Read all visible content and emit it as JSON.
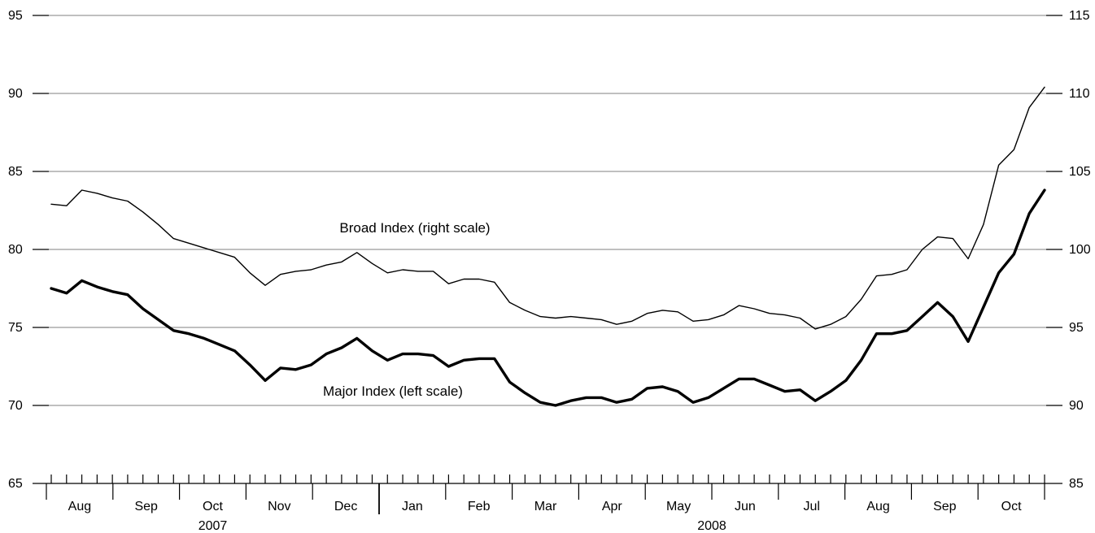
{
  "chart_data": {
    "type": "line",
    "left_axis": {
      "min": 65,
      "max": 95,
      "ticks": [
        65,
        70,
        75,
        80,
        85,
        90,
        95
      ]
    },
    "right_axis": {
      "min": 85,
      "max": 115,
      "ticks": [
        85,
        90,
        95,
        100,
        105,
        110,
        115
      ]
    },
    "months": [
      "Aug",
      "Sep",
      "Oct",
      "Nov",
      "Dec",
      "Jan",
      "Feb",
      "Mar",
      "Apr",
      "May",
      "Jun",
      "Jul",
      "Aug",
      "Sep",
      "Oct"
    ],
    "years": [
      {
        "label": "2007",
        "month_index": 2
      },
      {
        "label": "2008",
        "month_index": 9.5
      }
    ],
    "grid": "horizontal",
    "series": [
      {
        "name": "Broad Index (right scale)",
        "axis": "right",
        "line_weight": "thin",
        "values": [
          102.9,
          102.8,
          103.8,
          103.6,
          103.3,
          103.1,
          102.4,
          101.6,
          100.7,
          100.4,
          100.1,
          99.8,
          99.5,
          98.5,
          97.7,
          98.4,
          98.6,
          98.7,
          99.0,
          99.2,
          99.8,
          99.1,
          98.5,
          98.7,
          98.6,
          98.6,
          97.8,
          98.1,
          98.1,
          97.9,
          96.6,
          96.1,
          95.7,
          95.6,
          95.7,
          95.6,
          95.5,
          95.2,
          95.4,
          95.9,
          96.1,
          96.0,
          95.4,
          95.5,
          95.8,
          96.4,
          96.2,
          95.9,
          95.8,
          95.6,
          94.9,
          95.2,
          95.7,
          96.8,
          98.3,
          98.4,
          98.7,
          100.0,
          100.8,
          100.7,
          99.4,
          101.6,
          105.4,
          106.4,
          109.1,
          110.4
        ]
      },
      {
        "name": "Major Index (left scale)",
        "axis": "left",
        "line_weight": "thick",
        "values": [
          77.5,
          77.2,
          78.0,
          77.6,
          77.3,
          77.1,
          76.2,
          75.5,
          74.8,
          74.6,
          74.3,
          73.9,
          73.5,
          72.6,
          71.6,
          72.4,
          72.3,
          72.6,
          73.3,
          73.7,
          74.3,
          73.5,
          72.9,
          73.3,
          73.3,
          73.2,
          72.5,
          72.9,
          73.0,
          73.0,
          71.5,
          70.8,
          70.2,
          70.0,
          70.3,
          70.5,
          70.5,
          70.2,
          70.4,
          71.1,
          71.2,
          70.9,
          70.2,
          70.5,
          71.1,
          71.7,
          71.7,
          71.3,
          70.9,
          71.0,
          70.3,
          70.9,
          71.6,
          72.9,
          74.6,
          74.6,
          74.8,
          75.7,
          76.6,
          75.7,
          74.1,
          76.3,
          78.5,
          79.7,
          82.3,
          83.8
        ]
      }
    ]
  }
}
